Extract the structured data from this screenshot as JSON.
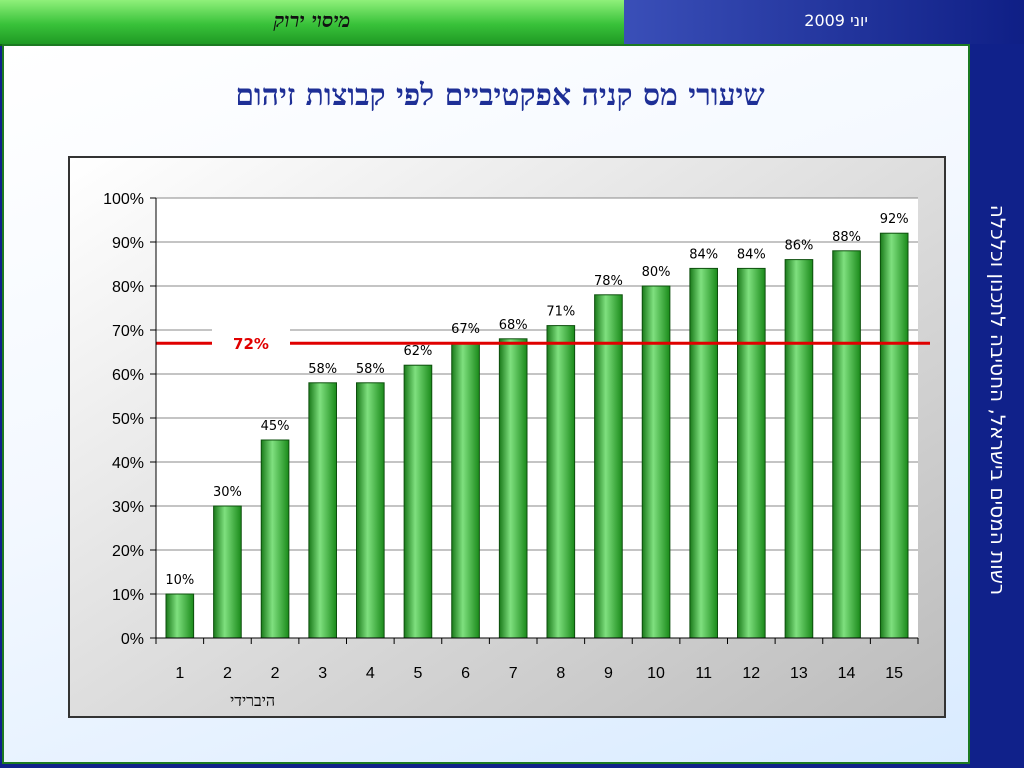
{
  "header": {
    "brand": "מיסוי ירוק",
    "date": "יוני  2009"
  },
  "side_label": "רשות המסים בישראל, החטיבה לתכנון וכלכלה",
  "title": "שיעורי מס קניה אפקטיביים לפי קבוצות זיהום",
  "chart_data": {
    "type": "bar",
    "title": "שיעורי מס קניה אפקטיביים לפי קבוצות זיהום",
    "xlabel": "",
    "ylabel": "",
    "categories": [
      "1",
      "2",
      "2",
      "3",
      "4",
      "5",
      "6",
      "7",
      "8",
      "9",
      "10",
      "11",
      "12",
      "13",
      "14",
      "15"
    ],
    "category_sublabels": [
      "",
      "",
      "היברידי",
      "",
      "",
      "",
      "",
      "",
      "",
      "",
      "",
      "",
      "",
      "",
      "",
      ""
    ],
    "values": [
      10,
      30,
      45,
      58,
      58,
      62,
      67,
      68,
      71,
      78,
      80,
      84,
      84,
      86,
      88,
      92
    ],
    "data_labels": [
      "10%",
      "30%",
      "45%",
      "58%",
      "58%",
      "62%",
      "67%",
      "68%",
      "71%",
      "78%",
      "80%",
      "84%",
      "84%",
      "86%",
      "88%",
      "92%"
    ],
    "ylim": [
      0,
      100
    ],
    "yticks": [
      "0%",
      "10%",
      "20%",
      "30%",
      "40%",
      "50%",
      "60%",
      "70%",
      "80%",
      "90%",
      "100%"
    ],
    "reference_line": {
      "value": 67,
      "label": "72%",
      "color": "#e00000"
    },
    "bar_color": "#3db33d",
    "grid": true,
    "legend": "none"
  }
}
